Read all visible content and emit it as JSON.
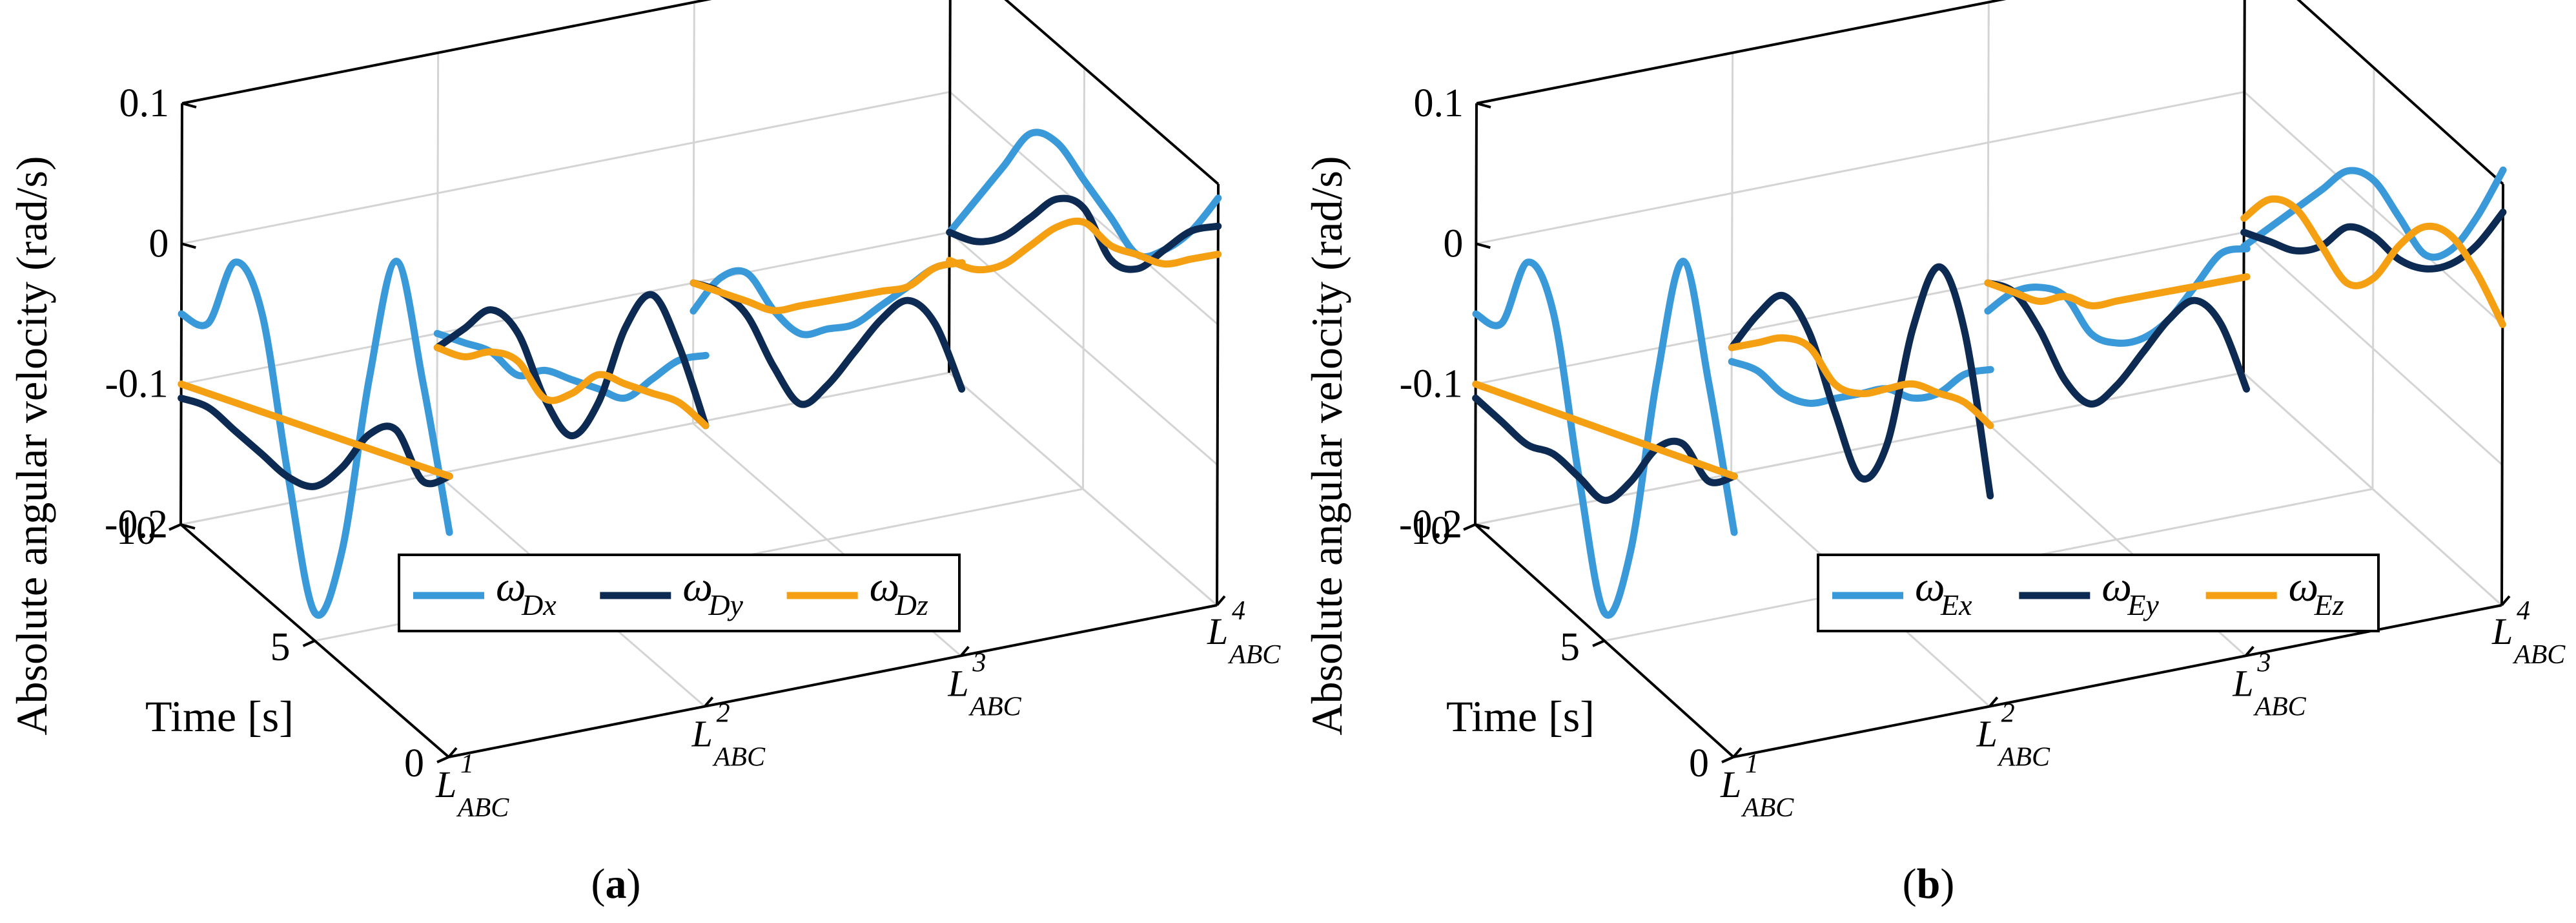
{
  "colors": {
    "series_x": "#3a9ad9",
    "series_y": "#0d2a52",
    "series_z": "#f5a012",
    "grid": "#d4d4d4",
    "axis": "#000000"
  },
  "chart_data": [
    {
      "panel": "a",
      "type": "line3d-waterfall",
      "caption": {
        "open": "(",
        "letter": "a",
        "close": ")"
      },
      "ylabel": "Absolute angular velocity (rad/s)",
      "time_label": "Time [s]",
      "zlim": [
        -0.2,
        0.1
      ],
      "z_ticks": [
        "0.1",
        "0",
        "-0.1",
        "-0.2"
      ],
      "time_ticks": [
        "10",
        "5",
        "0"
      ],
      "categories": [
        {
          "base": "L",
          "sup": "1",
          "sub": "ABC"
        },
        {
          "base": "L",
          "sup": "2",
          "sub": "ABC"
        },
        {
          "base": "L",
          "sup": "3",
          "sub": "ABC"
        },
        {
          "base": "L",
          "sup": "4",
          "sub": "ABC"
        }
      ],
      "legend": [
        {
          "omega": "ω",
          "sub": "Dx"
        },
        {
          "omega": "ω",
          "sub": "Dy"
        },
        {
          "omega": "ω",
          "sub": "Dz"
        }
      ],
      "time": [
        0,
        1,
        2,
        3,
        4,
        5,
        6,
        7,
        8,
        9,
        10
      ],
      "series": [
        {
          "name": "ωDx",
          "lines": [
            [
              -0.04,
              0.05,
              0.12,
              0.02,
              -0.12,
              -0.18,
              -0.1,
              0.0,
              0.02,
              -0.04,
              -0.05
            ],
            [
              0.05,
              0.03,
              0.0,
              -0.03,
              -0.04,
              -0.05,
              -0.06,
              -0.08,
              -0.08,
              -0.09,
              -0.1
            ],
            [
              0.08,
              0.06,
              0.03,
              0.0,
              -0.03,
              -0.05,
              -0.07,
              -0.07,
              -0.06,
              -0.08,
              -0.12
            ],
            [
              0.09,
              0.05,
              0.02,
              0.0,
              0.01,
              0.02,
              0.03,
              0.02,
              -0.02,
              -0.06,
              -0.1
            ]
          ]
        },
        {
          "name": "ωDy",
          "lines": [
            [
              0.0,
              -0.02,
              0.0,
              -0.02,
              -0.06,
              -0.09,
              -0.1,
              -0.1,
              -0.1,
              -0.1,
              -0.11
            ],
            [
              0.0,
              0.04,
              0.06,
              0.02,
              -0.05,
              -0.09,
              -0.08,
              -0.05,
              -0.05,
              -0.08,
              -0.11
            ],
            [
              -0.01,
              0.02,
              0.02,
              -0.01,
              -0.05,
              -0.09,
              -0.12,
              -0.11,
              -0.09,
              -0.09,
              -0.1
            ],
            [
              0.07,
              0.05,
              0.02,
              -0.01,
              -0.02,
              0.0,
              -0.01,
              -0.04,
              -0.07,
              -0.09,
              -0.1
            ]
          ]
        },
        {
          "name": "ωDz",
          "lines": [
            [
              0.0,
              -0.01,
              -0.02,
              -0.03,
              -0.04,
              -0.05,
              -0.06,
              -0.07,
              -0.08,
              -0.09,
              -0.1
            ],
            [
              0.0,
              0.0,
              -0.01,
              -0.02,
              -0.03,
              -0.06,
              -0.08,
              -0.07,
              -0.08,
              -0.1,
              -0.11
            ],
            [
              0.08,
              0.06,
              0.03,
              0.01,
              -0.01,
              -0.03,
              -0.05,
              -0.07,
              -0.08,
              -0.09,
              -0.1
            ],
            [
              0.05,
              0.03,
              0.01,
              0.0,
              -0.01,
              -0.01,
              -0.03,
              -0.06,
              -0.09,
              -0.11,
              -0.12
            ]
          ]
        }
      ]
    },
    {
      "panel": "b",
      "type": "line3d-waterfall",
      "caption": {
        "open": "(",
        "letter": "b",
        "close": ")"
      },
      "ylabel": "Absolute angular velocity (rad/s)",
      "time_label": "Time [s]",
      "zlim": [
        -0.2,
        0.1
      ],
      "z_ticks": [
        "0.1",
        "0",
        "-0.1",
        "-0.2"
      ],
      "time_ticks": [
        "10",
        "5",
        "0"
      ],
      "categories": [
        {
          "base": "L",
          "sup": "1",
          "sub": "ABC"
        },
        {
          "base": "L",
          "sup": "2",
          "sub": "ABC"
        },
        {
          "base": "L",
          "sup": "3",
          "sub": "ABC"
        },
        {
          "base": "L",
          "sup": "4",
          "sub": "ABC"
        }
      ],
      "legend": [
        {
          "omega": "ω",
          "sub": "Ex"
        },
        {
          "omega": "ω",
          "sub": "Ey"
        },
        {
          "omega": "ω",
          "sub": "Ez"
        }
      ],
      "time": [
        0,
        1,
        2,
        3,
        4,
        5,
        6,
        7,
        8,
        9,
        10
      ],
      "series": [
        {
          "name": "ωEx",
          "lines": [
            [
              -0.04,
              0.05,
              0.12,
              0.02,
              -0.12,
              -0.18,
              -0.1,
              0.0,
              0.02,
              -0.04,
              -0.05
            ],
            [
              0.04,
              0.02,
              -0.01,
              -0.03,
              -0.04,
              -0.06,
              -0.08,
              -0.1,
              -0.11,
              -0.11,
              -0.12
            ],
            [
              0.09,
              0.07,
              0.03,
              -0.01,
              -0.04,
              -0.06,
              -0.07,
              -0.06,
              -0.07,
              -0.09,
              -0.12
            ],
            [
              0.11,
              0.06,
              0.02,
              0.0,
              0.01,
              0.02,
              0.01,
              -0.02,
              -0.05,
              -0.08,
              -0.11
            ]
          ]
        },
        {
          "name": "ωEy",
          "lines": [
            [
              0.0,
              -0.02,
              -0.01,
              -0.03,
              -0.07,
              -0.1,
              -0.1,
              -0.1,
              -0.11,
              -0.11,
              -0.11
            ],
            [
              -0.05,
              0.05,
              0.08,
              0.02,
              -0.08,
              -0.12,
              -0.09,
              -0.05,
              -0.04,
              -0.07,
              -0.11
            ],
            [
              -0.01,
              0.02,
              0.02,
              -0.01,
              -0.05,
              -0.09,
              -0.12,
              -0.12,
              -0.1,
              -0.09,
              -0.1
            ],
            [
              0.08,
              0.04,
              0.01,
              -0.01,
              -0.02,
              -0.02,
              -0.03,
              -0.06,
              -0.08,
              -0.09,
              -0.1
            ]
          ]
        },
        {
          "name": "ωEz",
          "lines": [
            [
              0.0,
              -0.01,
              -0.02,
              -0.03,
              -0.04,
              -0.05,
              -0.06,
              -0.07,
              -0.08,
              -0.09,
              -0.1
            ],
            [
              0.0,
              0.0,
              -0.01,
              -0.02,
              -0.04,
              -0.06,
              -0.07,
              -0.06,
              -0.07,
              -0.09,
              -0.11
            ],
            [
              0.07,
              0.05,
              0.03,
              0.01,
              -0.01,
              -0.03,
              -0.05,
              -0.06,
              -0.08,
              -0.09,
              -0.1
            ],
            [
              0.0,
              0.02,
              0.03,
              0.02,
              -0.01,
              -0.05,
              -0.07,
              -0.06,
              -0.05,
              -0.06,
              -0.09
            ]
          ]
        }
      ]
    }
  ]
}
